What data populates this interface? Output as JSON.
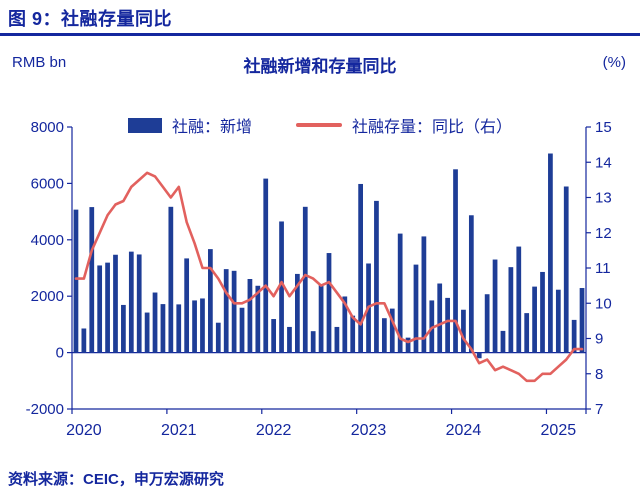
{
  "header": {
    "title": "图 9：社融存量同比"
  },
  "chart": {
    "title": "社融新增和存量同比",
    "unit_left": "RMB bn",
    "unit_right": "(%)"
  },
  "legend": {
    "bar_label": "社融：新增",
    "line_label": "社融存量：同比（右）"
  },
  "footer": {
    "text": "资料来源：CEIC，申万宏源研究"
  },
  "chart_data": {
    "type": "bar",
    "subtype": "bar-with-line-overlay",
    "title": "社融新增和存量同比",
    "x_months": [
      "2020-01",
      "2020-02",
      "2020-03",
      "2020-04",
      "2020-05",
      "2020-06",
      "2020-07",
      "2020-08",
      "2020-09",
      "2020-10",
      "2020-11",
      "2020-12",
      "2021-01",
      "2021-02",
      "2021-03",
      "2021-04",
      "2021-05",
      "2021-06",
      "2021-07",
      "2021-08",
      "2021-09",
      "2021-10",
      "2021-11",
      "2021-12",
      "2022-01",
      "2022-02",
      "2022-03",
      "2022-04",
      "2022-05",
      "2022-06",
      "2022-07",
      "2022-08",
      "2022-09",
      "2022-10",
      "2022-11",
      "2022-12",
      "2023-01",
      "2023-02",
      "2023-03",
      "2023-04",
      "2023-05",
      "2023-06",
      "2023-07",
      "2023-08",
      "2023-09",
      "2023-10",
      "2023-11",
      "2023-12",
      "2024-01",
      "2024-02",
      "2024-03",
      "2024-04",
      "2024-05",
      "2024-06",
      "2024-07",
      "2024-08",
      "2024-09",
      "2024-10",
      "2024-11",
      "2024-12",
      "2025-01",
      "2025-02",
      "2025-03",
      "2025-04",
      "2025-05"
    ],
    "x_year_labels": [
      "2020",
      "2021",
      "2022",
      "2023",
      "2024",
      "2025"
    ],
    "series": [
      {
        "name": "社融：新增",
        "type": "bar",
        "axis": "left",
        "values": [
          5070,
          855,
          5160,
          3090,
          3190,
          3470,
          1690,
          3580,
          3480,
          1420,
          2130,
          1720,
          5170,
          1710,
          3340,
          1850,
          1920,
          3670,
          1060,
          2960,
          2900,
          1590,
          2610,
          2370,
          6170,
          1190,
          4650,
          910,
          2790,
          5170,
          760,
          2430,
          3530,
          910,
          1990,
          1310,
          5980,
          3160,
          5380,
          1220,
          1560,
          4220,
          530,
          3120,
          4120,
          1850,
          2450,
          1940,
          6500,
          1520,
          4870,
          -200,
          2070,
          3300,
          770,
          3030,
          3760,
          1400,
          2340,
          2860,
          7060,
          2230,
          5890,
          1160,
          2290
        ]
      },
      {
        "name": "社融存量：同比（右）",
        "type": "line",
        "axis": "right",
        "values": [
          10.7,
          10.7,
          11.5,
          12.0,
          12.5,
          12.8,
          12.9,
          13.3,
          13.5,
          13.7,
          13.6,
          13.3,
          13.0,
          13.3,
          12.3,
          11.7,
          11.0,
          11.0,
          10.7,
          10.3,
          10.0,
          10.0,
          10.1,
          10.3,
          10.5,
          10.2,
          10.6,
          10.2,
          10.5,
          10.8,
          10.7,
          10.5,
          10.6,
          10.3,
          10.0,
          9.6,
          9.4,
          9.9,
          10.0,
          10.0,
          9.5,
          9.0,
          8.9,
          9.0,
          9.0,
          9.3,
          9.4,
          9.5,
          9.5,
          9.0,
          8.7,
          8.3,
          8.4,
          8.1,
          8.2,
          8.1,
          8.0,
          7.8,
          7.8,
          8.0,
          8.0,
          8.2,
          8.4,
          8.7,
          8.7
        ]
      }
    ],
    "left_axis": {
      "label": "RMB bn",
      "min": -2000,
      "max": 8000,
      "ticks": [
        -2000,
        0,
        2000,
        4000,
        6000,
        8000
      ]
    },
    "right_axis": {
      "label": "(%)",
      "min": 7,
      "max": 15,
      "ticks": [
        7,
        8,
        9,
        10,
        11,
        12,
        13,
        14,
        15
      ]
    },
    "grid": false,
    "legend_position": "top",
    "colors": {
      "bar": "#1e3d96",
      "line": "#e2615e",
      "axis": "#14279e"
    }
  }
}
